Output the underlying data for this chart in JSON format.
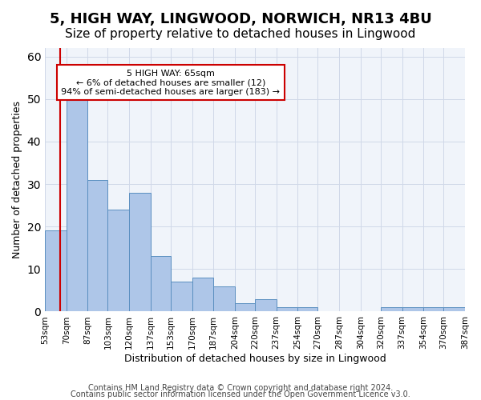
{
  "title": "5, HIGH WAY, LINGWOOD, NORWICH, NR13 4BU",
  "subtitle": "Size of property relative to detached houses in Lingwood",
  "xlabel": "Distribution of detached houses by size in Lingwood",
  "ylabel": "Number of detached properties",
  "bin_edges": [
    53,
    70,
    87,
    103,
    120,
    137,
    153,
    170,
    187,
    204,
    220,
    237,
    254,
    270,
    287,
    304,
    320,
    337,
    354,
    370,
    387
  ],
  "bar_heights": [
    19,
    50,
    31,
    24,
    28,
    13,
    7,
    8,
    6,
    2,
    3,
    1,
    1,
    0,
    0,
    0,
    1,
    1,
    1,
    1
  ],
  "bar_color": "#aec6e8",
  "bar_edge_color": "#5a8fc0",
  "property_size": 65,
  "red_line_color": "#cc0000",
  "ylim": [
    0,
    62
  ],
  "annotation_text": "5 HIGH WAY: 65sqm\n← 6% of detached houses are smaller (12)\n94% of semi-detached houses are larger (183) →",
  "annotation_box_color": "white",
  "annotation_box_edge_color": "#cc0000",
  "footer_line1": "Contains HM Land Registry data © Crown copyright and database right 2024.",
  "footer_line2": "Contains public sector information licensed under the Open Government Licence v3.0.",
  "title_fontsize": 13,
  "subtitle_fontsize": 11,
  "tick_label_fontsize": 7.5,
  "ylabel_fontsize": 9,
  "xlabel_fontsize": 9,
  "footer_fontsize": 7
}
